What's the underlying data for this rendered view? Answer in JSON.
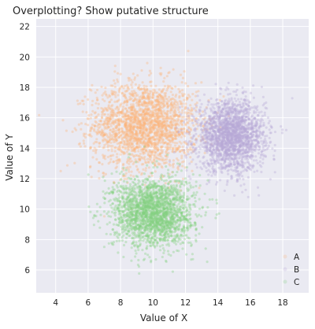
{
  "chart_data": {
    "type": "scatter",
    "title": "Overplotting? Show putative structure",
    "xlabel": "Value of X",
    "ylabel": "Value of Y",
    "xlim": [
      2.8,
      19.6
    ],
    "ylim": [
      4.5,
      22.5
    ],
    "xticks": [
      4,
      6,
      8,
      10,
      12,
      14,
      16,
      18
    ],
    "yticks": [
      6,
      8,
      10,
      12,
      14,
      16,
      18,
      20,
      22
    ],
    "grid": true,
    "background": "#eaeaf2",
    "legend": {
      "position": "bottom-right",
      "entries": [
        "A",
        "B",
        "C"
      ]
    },
    "series": [
      {
        "name": "A",
        "color": "#fdb57b",
        "center": [
          9.5,
          15.5
        ],
        "spread": [
          1.7,
          1.5
        ]
      },
      {
        "name": "B",
        "color": "#b8a8d8",
        "center": [
          14.8,
          14.8
        ],
        "spread": [
          1.1,
          1.2
        ]
      },
      {
        "name": "C",
        "color": "#84d082",
        "center": [
          10.0,
          9.8
        ],
        "spread": [
          1.3,
          1.2
        ]
      }
    ]
  }
}
